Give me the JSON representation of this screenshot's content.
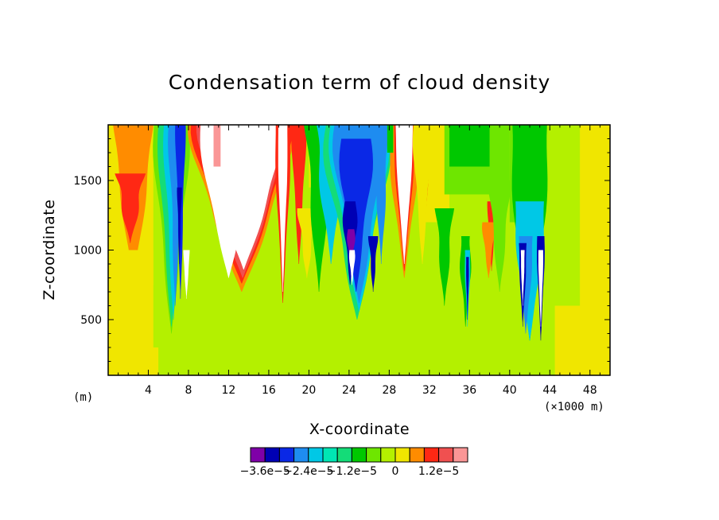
{
  "chart_data": {
    "type": "heatmap",
    "title": "Condensation term of cloud density",
    "xlabel": "X-coordinate",
    "ylabel": "Z-coordinate",
    "x_unit_left": "(m)",
    "x_unit_right": "(×1000 m)",
    "xlim": [
      0,
      50
    ],
    "ylim": [
      100,
      1900
    ],
    "x_ticks": [
      4,
      8,
      12,
      16,
      20,
      24,
      28,
      32,
      36,
      40,
      44,
      48
    ],
    "x_tick_labels": [
      "4",
      "8",
      "12",
      "16",
      "20",
      "24",
      "28",
      "32",
      "36",
      "40",
      "44",
      "48"
    ],
    "y_ticks": [
      500,
      1000,
      1500
    ],
    "y_tick_labels": [
      "500",
      "1000",
      "1500"
    ],
    "colorbar": {
      "colors": [
        "#7f00a8",
        "#0000b4",
        "#0a28e6",
        "#1e8cf0",
        "#00c8e6",
        "#00e6b4",
        "#14dc78",
        "#00c800",
        "#6ee600",
        "#b4f000",
        "#f0e600",
        "#ff8c00",
        "#ff2814",
        "#f05050",
        "#fa9696"
      ],
      "tick_labels": [
        "−3.6e−5",
        "−2.4e−5",
        "−1.2e−5",
        "0",
        "1.2e−5"
      ]
    },
    "regions": [
      {
        "x": [
          0,
          50
        ],
        "z": [
          100,
          1900
        ],
        "level": "0 to 6e-6"
      },
      {
        "x": [
          0.5,
          4.3
        ],
        "z": [
          750,
          1900
        ],
        "level": "6e-6 to 1.2e-5"
      },
      {
        "x": [
          0.8,
          3.6
        ],
        "z": [
          1050,
          1550
        ],
        "level": "1.2e-5 to 1.8e-5"
      },
      {
        "x": [
          9.2,
          17.8
        ],
        "z": [
          780,
          1900
        ],
        "level": "> 2.4e-5"
      },
      {
        "x": [
          23.8,
          24.8
        ],
        "z": [
          600,
          1250
        ],
        "level": "> 2.4e-5"
      },
      {
        "x": [
          28.8,
          30.2
        ],
        "z": [
          850,
          1900
        ],
        "level": "> 2.4e-5"
      },
      {
        "x": [
          5.4,
          7.8
        ],
        "z": [
          350,
          1900
        ],
        "level": "< -2.4e-5"
      },
      {
        "x": [
          22.8,
          28.2
        ],
        "z": [
          600,
          1900
        ],
        "level": "-3.6e-5 to -1.2e-5"
      },
      {
        "x": [
          40.6,
          43.6
        ],
        "z": [
          300,
          1100
        ],
        "level": "< -3.0e-5"
      },
      {
        "x": [
          35.6,
          36.0
        ],
        "z": [
          380,
          1000
        ],
        "level": "< -3.0e-5"
      }
    ]
  }
}
